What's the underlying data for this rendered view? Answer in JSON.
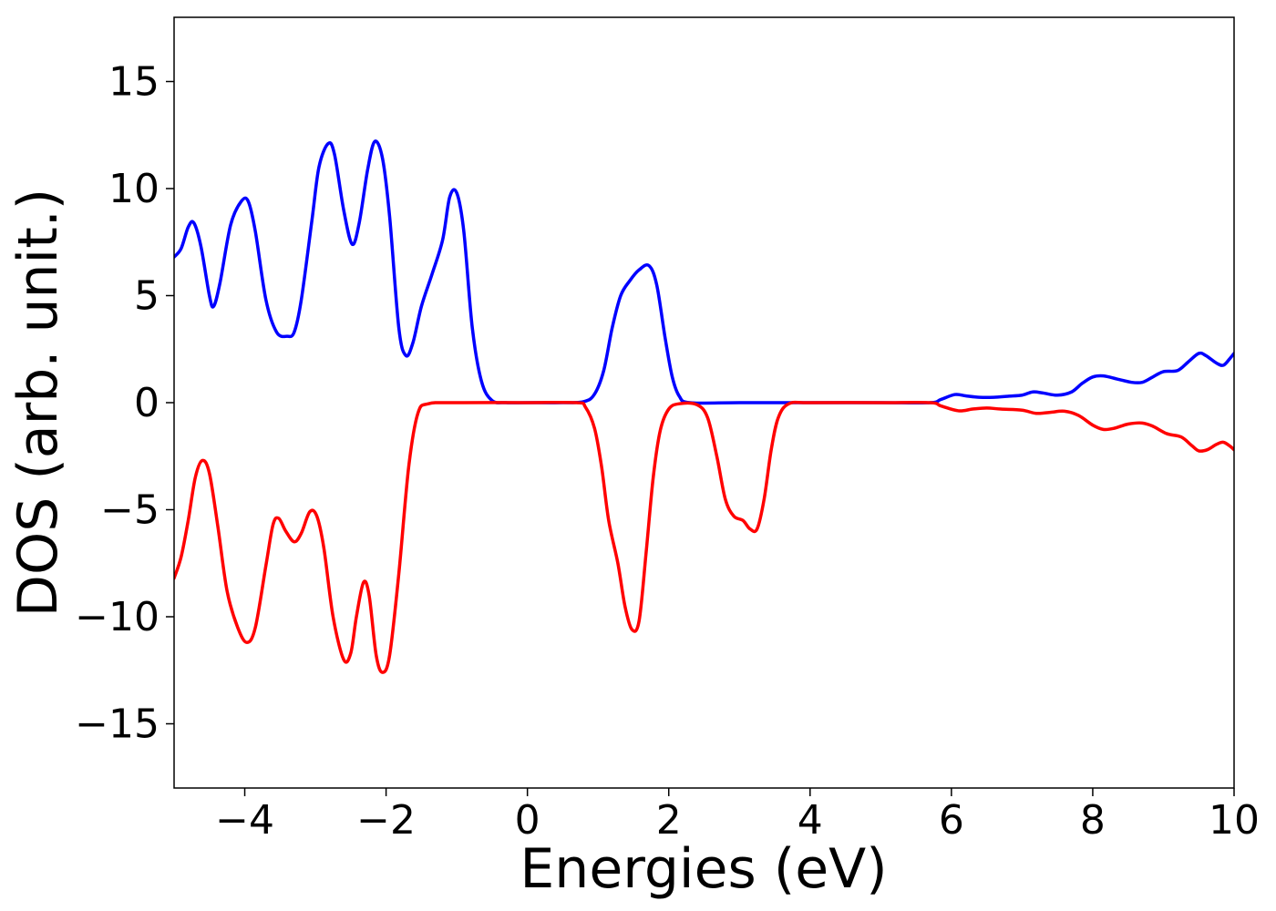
{
  "chart_data": {
    "type": "line",
    "xlabel": "Energies (eV)",
    "ylabel": "DOS (arb. unit.)",
    "xlim": [
      -5,
      10
    ],
    "ylim": [
      -18,
      18
    ],
    "grid": false,
    "legend": "none",
    "x_ticks": [
      {
        "value": -4,
        "label": "−4"
      },
      {
        "value": -2,
        "label": "−2"
      },
      {
        "value": 0,
        "label": "0"
      },
      {
        "value": 2,
        "label": "2"
      },
      {
        "value": 4,
        "label": "4"
      },
      {
        "value": 6,
        "label": "6"
      },
      {
        "value": 8,
        "label": "8"
      },
      {
        "value": 10,
        "label": "10"
      }
    ],
    "y_ticks": [
      {
        "value": -15,
        "label": "−15"
      },
      {
        "value": -10,
        "label": "−10"
      },
      {
        "value": -5,
        "label": "−5"
      },
      {
        "value": 0,
        "label": "0"
      },
      {
        "value": 5,
        "label": "5"
      },
      {
        "value": 10,
        "label": "10"
      },
      {
        "value": 15,
        "label": "15"
      }
    ],
    "series": [
      {
        "color": "#0000ff",
        "points": [
          [
            -5.0,
            6.8
          ],
          [
            -4.9,
            7.2
          ],
          [
            -4.8,
            8.2
          ],
          [
            -4.72,
            8.4
          ],
          [
            -4.62,
            7.3
          ],
          [
            -4.5,
            5.0
          ],
          [
            -4.44,
            4.5
          ],
          [
            -4.35,
            5.6
          ],
          [
            -4.2,
            8.3
          ],
          [
            -4.05,
            9.4
          ],
          [
            -3.95,
            9.4
          ],
          [
            -3.85,
            8.0
          ],
          [
            -3.7,
            4.8
          ],
          [
            -3.55,
            3.3
          ],
          [
            -3.4,
            3.1
          ],
          [
            -3.3,
            3.3
          ],
          [
            -3.2,
            4.8
          ],
          [
            -3.05,
            8.5
          ],
          [
            -2.95,
            11.0
          ],
          [
            -2.82,
            12.1
          ],
          [
            -2.73,
            11.6
          ],
          [
            -2.6,
            9.0
          ],
          [
            -2.48,
            7.4
          ],
          [
            -2.38,
            8.4
          ],
          [
            -2.26,
            10.9
          ],
          [
            -2.16,
            12.2
          ],
          [
            -2.05,
            11.4
          ],
          [
            -1.95,
            8.7
          ],
          [
            -1.82,
            3.5
          ],
          [
            -1.72,
            2.2
          ],
          [
            -1.62,
            2.8
          ],
          [
            -1.5,
            4.5
          ],
          [
            -1.35,
            6.0
          ],
          [
            -1.2,
            7.6
          ],
          [
            -1.1,
            9.6
          ],
          [
            -1.0,
            9.8
          ],
          [
            -0.9,
            8.0
          ],
          [
            -0.78,
            3.5
          ],
          [
            -0.65,
            1.0
          ],
          [
            -0.5,
            0.1
          ],
          [
            -0.3,
            0.0
          ],
          [
            0.0,
            0.0
          ],
          [
            0.5,
            0.0
          ],
          [
            0.8,
            0.05
          ],
          [
            0.95,
            0.4
          ],
          [
            1.08,
            1.5
          ],
          [
            1.2,
            3.5
          ],
          [
            1.32,
            5.0
          ],
          [
            1.45,
            5.7
          ],
          [
            1.58,
            6.2
          ],
          [
            1.72,
            6.4
          ],
          [
            1.83,
            5.5
          ],
          [
            1.95,
            3.0
          ],
          [
            2.05,
            1.2
          ],
          [
            2.15,
            0.3
          ],
          [
            2.3,
            0.0
          ],
          [
            3.0,
            0.0
          ],
          [
            4.0,
            0.0
          ],
          [
            5.0,
            0.0
          ],
          [
            5.7,
            0.0
          ],
          [
            5.85,
            0.15
          ],
          [
            6.05,
            0.38
          ],
          [
            6.2,
            0.32
          ],
          [
            6.4,
            0.25
          ],
          [
            6.6,
            0.25
          ],
          [
            6.8,
            0.3
          ],
          [
            7.0,
            0.35
          ],
          [
            7.15,
            0.5
          ],
          [
            7.3,
            0.45
          ],
          [
            7.5,
            0.35
          ],
          [
            7.7,
            0.5
          ],
          [
            7.85,
            0.9
          ],
          [
            8.0,
            1.2
          ],
          [
            8.15,
            1.25
          ],
          [
            8.35,
            1.1
          ],
          [
            8.55,
            0.95
          ],
          [
            8.7,
            0.95
          ],
          [
            8.85,
            1.2
          ],
          [
            9.0,
            1.45
          ],
          [
            9.2,
            1.5
          ],
          [
            9.35,
            1.9
          ],
          [
            9.5,
            2.3
          ],
          [
            9.6,
            2.2
          ],
          [
            9.75,
            1.85
          ],
          [
            9.85,
            1.75
          ],
          [
            9.95,
            2.1
          ],
          [
            10.0,
            2.3
          ]
        ]
      },
      {
        "color": "#ff0000",
        "points": [
          [
            -5.0,
            -8.2
          ],
          [
            -4.9,
            -7.2
          ],
          [
            -4.8,
            -5.5
          ],
          [
            -4.7,
            -3.5
          ],
          [
            -4.6,
            -2.7
          ],
          [
            -4.5,
            -3.3
          ],
          [
            -4.38,
            -5.8
          ],
          [
            -4.25,
            -8.8
          ],
          [
            -4.1,
            -10.5
          ],
          [
            -3.97,
            -11.2
          ],
          [
            -3.85,
            -10.5
          ],
          [
            -3.7,
            -7.6
          ],
          [
            -3.6,
            -5.7
          ],
          [
            -3.52,
            -5.4
          ],
          [
            -3.42,
            -6.0
          ],
          [
            -3.3,
            -6.5
          ],
          [
            -3.2,
            -6.1
          ],
          [
            -3.08,
            -5.1
          ],
          [
            -2.98,
            -5.3
          ],
          [
            -2.88,
            -6.8
          ],
          [
            -2.75,
            -10.0
          ],
          [
            -2.6,
            -12.0
          ],
          [
            -2.5,
            -11.7
          ],
          [
            -2.42,
            -10.0
          ],
          [
            -2.32,
            -8.4
          ],
          [
            -2.24,
            -9.0
          ],
          [
            -2.14,
            -11.8
          ],
          [
            -2.05,
            -12.6
          ],
          [
            -1.95,
            -11.8
          ],
          [
            -1.82,
            -8.0
          ],
          [
            -1.68,
            -3.0
          ],
          [
            -1.55,
            -0.5
          ],
          [
            -1.4,
            -0.05
          ],
          [
            -1.0,
            0.0
          ],
          [
            0.0,
            0.0
          ],
          [
            0.7,
            0.0
          ],
          [
            0.82,
            -0.2
          ],
          [
            0.95,
            -1.2
          ],
          [
            1.05,
            -3.0
          ],
          [
            1.15,
            -5.5
          ],
          [
            1.28,
            -7.5
          ],
          [
            1.38,
            -9.5
          ],
          [
            1.48,
            -10.6
          ],
          [
            1.58,
            -10.2
          ],
          [
            1.68,
            -7.0
          ],
          [
            1.78,
            -3.5
          ],
          [
            1.88,
            -1.3
          ],
          [
            2.0,
            -0.3
          ],
          [
            2.15,
            -0.05
          ],
          [
            2.4,
            -0.1
          ],
          [
            2.55,
            -0.7
          ],
          [
            2.68,
            -2.5
          ],
          [
            2.8,
            -4.5
          ],
          [
            2.92,
            -5.3
          ],
          [
            3.05,
            -5.5
          ],
          [
            3.15,
            -5.9
          ],
          [
            3.25,
            -5.9
          ],
          [
            3.35,
            -4.5
          ],
          [
            3.45,
            -2.2
          ],
          [
            3.55,
            -0.7
          ],
          [
            3.7,
            -0.05
          ],
          [
            4.0,
            0.0
          ],
          [
            5.0,
            0.0
          ],
          [
            5.7,
            0.0
          ],
          [
            5.85,
            -0.15
          ],
          [
            6.1,
            -0.38
          ],
          [
            6.3,
            -0.3
          ],
          [
            6.5,
            -0.25
          ],
          [
            6.7,
            -0.3
          ],
          [
            7.0,
            -0.35
          ],
          [
            7.2,
            -0.5
          ],
          [
            7.4,
            -0.45
          ],
          [
            7.6,
            -0.4
          ],
          [
            7.8,
            -0.6
          ],
          [
            8.0,
            -1.05
          ],
          [
            8.15,
            -1.25
          ],
          [
            8.3,
            -1.2
          ],
          [
            8.5,
            -1.0
          ],
          [
            8.7,
            -0.95
          ],
          [
            8.85,
            -1.1
          ],
          [
            9.05,
            -1.45
          ],
          [
            9.25,
            -1.6
          ],
          [
            9.4,
            -2.0
          ],
          [
            9.5,
            -2.25
          ],
          [
            9.62,
            -2.2
          ],
          [
            9.75,
            -1.95
          ],
          [
            9.85,
            -1.85
          ],
          [
            9.95,
            -2.05
          ],
          [
            10.0,
            -2.2
          ]
        ]
      }
    ]
  }
}
